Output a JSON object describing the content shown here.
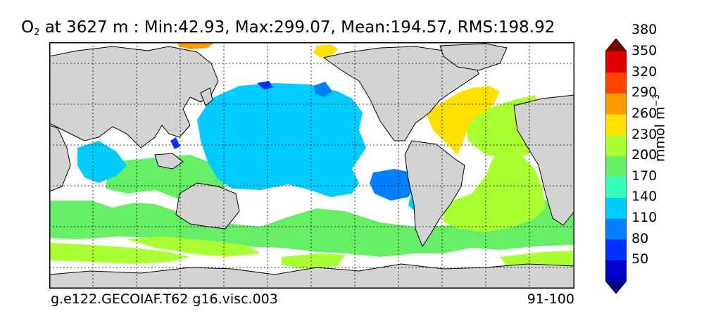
{
  "title": {
    "variable": "O",
    "subscript": "2",
    "rest": " at 3627 m : Min:42.93, Max:299.07, Mean:194.57, RMS:198.92"
  },
  "footer": {
    "case_name": "g.e122.GECOIAF.T62 g16.visc.003",
    "years": "91-100"
  },
  "colorbar": {
    "units_base": "mmol m",
    "units_exp": "−3",
    "ticks": [
      "50",
      "80",
      "110",
      "140",
      "170",
      "200",
      "230",
      "260",
      "290",
      "320",
      "350",
      "380"
    ],
    "colors": [
      "#000080",
      "#0000c8",
      "#0032ff",
      "#0080ff",
      "#00ccff",
      "#33ffbb",
      "#66ee66",
      "#aaff33",
      "#ffe000",
      "#ff9900",
      "#ff4400",
      "#e00000",
      "#800000"
    ],
    "extend": "both"
  },
  "map": {
    "land_color": "#d3d3d3",
    "missing_color": "#ffffff",
    "gridlines": "dashed"
  }
}
